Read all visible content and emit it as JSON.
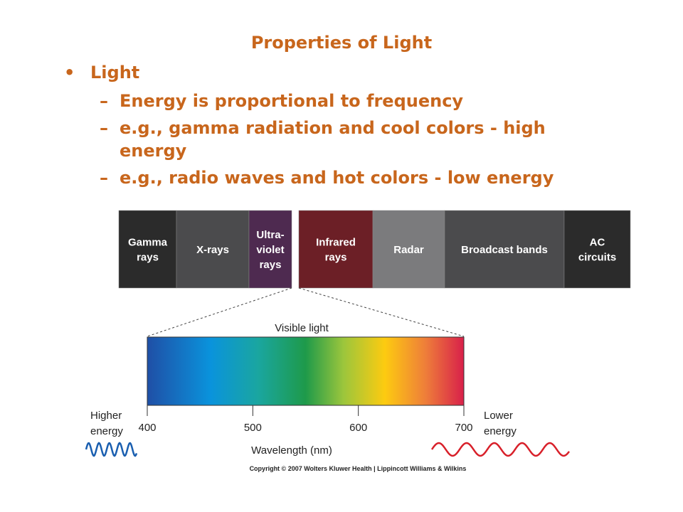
{
  "title": "Properties of Light",
  "bullets": [
    {
      "level": 1,
      "lines": [
        "Light"
      ]
    },
    {
      "level": 2,
      "lines": [
        "Energy is proportional to frequency"
      ]
    },
    {
      "level": 2,
      "lines": [
        "e.g., gamma radiation and cool colors - high",
        "energy"
      ]
    },
    {
      "level": 2,
      "lines": [
        "e.g., radio waves and hot colors - low energy"
      ]
    }
  ],
  "bullet_marks": [
    "•",
    "–"
  ],
  "spectrum": [
    {
      "lines": [
        "Gamma",
        "rays"
      ],
      "color": "#2b2b2b"
    },
    {
      "lines": [
        "X-rays"
      ],
      "color": "#4b4b4d"
    },
    {
      "lines": [
        "Ultra-",
        "violet",
        "rays"
      ],
      "color": "#4e2a50"
    },
    {
      "lines": [
        "Infrared",
        "rays"
      ],
      "color": "#6c1f26"
    },
    {
      "lines": [
        "Radar"
      ],
      "color": "#7b7b7d"
    },
    {
      "lines": [
        "Broadcast bands"
      ],
      "color": "#4b4b4d"
    },
    {
      "lines": [
        "AC",
        "circuits"
      ],
      "color": "#2b2b2b"
    }
  ],
  "visible_label": "Visible light",
  "ticks": [
    400,
    500,
    600,
    700
  ],
  "axis_label": "Wavelength (nm)",
  "left_label": [
    "Higher",
    "energy"
  ],
  "right_label": [
    "Lower",
    "energy"
  ],
  "copyright": "Copyright © 2007 Wolters Kluwer Health | Lippincott Williams & Wilkins"
}
